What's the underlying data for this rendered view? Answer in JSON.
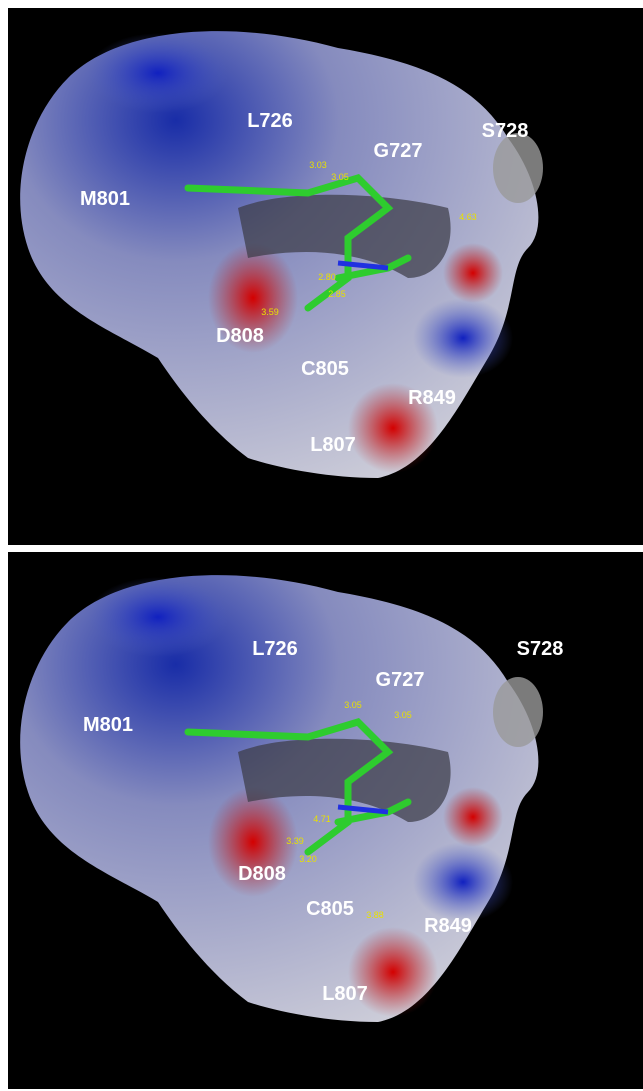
{
  "panels": [
    {
      "residues": [
        "L726",
        "G727",
        "S728",
        "M801",
        "D808",
        "C805",
        "R849",
        "L807"
      ],
      "distances": [
        "3.03",
        "3.05",
        "4.63",
        "2.80",
        "2.85",
        "3.59"
      ]
    },
    {
      "residues": [
        "L726",
        "G727",
        "S728",
        "M801",
        "D808",
        "C805",
        "R849",
        "L807"
      ],
      "distances": [
        "3.05",
        "3.05",
        "4.71",
        "3.39",
        "3.20",
        "3.88"
      ]
    }
  ]
}
